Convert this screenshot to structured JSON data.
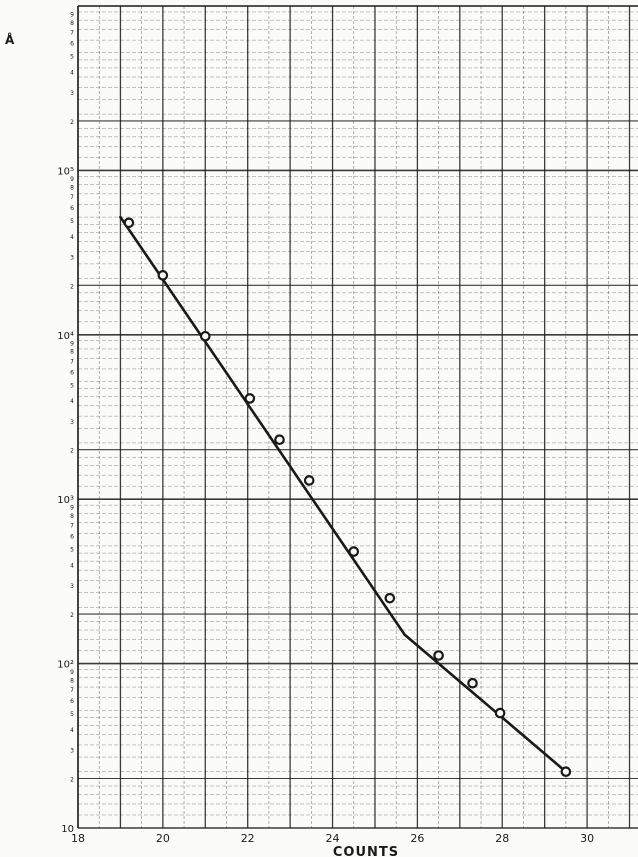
{
  "chart_data": {
    "type": "line",
    "scale": {
      "x": "linear",
      "y": "log"
    },
    "xlabel": "COUNTS",
    "ylabel": "Å",
    "xlim": [
      18,
      31.2
    ],
    "ylim": [
      10,
      1000000
    ],
    "grid": true,
    "x_ticks": [
      {
        "value": 18,
        "label": "18"
      },
      {
        "value": 20,
        "label": "20"
      },
      {
        "value": 22,
        "label": "22"
      },
      {
        "value": 24,
        "label": "24"
      },
      {
        "value": 26,
        "label": "26"
      },
      {
        "value": 28,
        "label": "28"
      },
      {
        "value": 30,
        "label": "30"
      }
    ],
    "y_decade_labels": [
      {
        "value": 10,
        "label": "10"
      },
      {
        "value": 100,
        "label": "10²"
      },
      {
        "value": 1000,
        "label": "10³"
      },
      {
        "value": 10000,
        "label": "10⁴"
      },
      {
        "value": 100000,
        "label": "10⁵"
      }
    ],
    "y_minor_labels": [
      {
        "value": 20,
        "label": "2"
      },
      {
        "value": 30,
        "label": "3"
      },
      {
        "value": 40,
        "label": "4"
      },
      {
        "value": 50,
        "label": "5"
      },
      {
        "value": 60,
        "label": "6"
      },
      {
        "value": 70,
        "label": "7"
      },
      {
        "value": 80,
        "label": "8"
      },
      {
        "value": 90,
        "label": "9"
      },
      {
        "value": 200,
        "label": "2"
      },
      {
        "value": 300,
        "label": "3"
      },
      {
        "value": 400,
        "label": "4"
      },
      {
        "value": 500,
        "label": "5"
      },
      {
        "value": 600,
        "label": "6"
      },
      {
        "value": 700,
        "label": "7"
      },
      {
        "value": 800,
        "label": "8"
      },
      {
        "value": 900,
        "label": "9"
      },
      {
        "value": 2000,
        "label": "2"
      },
      {
        "value": 3000,
        "label": "3"
      },
      {
        "value": 4000,
        "label": "4"
      },
      {
        "value": 5000,
        "label": "5"
      },
      {
        "value": 6000,
        "label": "6"
      },
      {
        "value": 7000,
        "label": "7"
      },
      {
        "value": 8000,
        "label": "8"
      },
      {
        "value": 9000,
        "label": "9"
      },
      {
        "value": 20000,
        "label": "2"
      },
      {
        "value": 30000,
        "label": "3"
      },
      {
        "value": 40000,
        "label": "4"
      },
      {
        "value": 50000,
        "label": "5"
      },
      {
        "value": 60000,
        "label": "6"
      },
      {
        "value": 70000,
        "label": "7"
      },
      {
        "value": 80000,
        "label": "8"
      },
      {
        "value": 90000,
        "label": "9"
      },
      {
        "value": 200000,
        "label": "2"
      },
      {
        "value": 300000,
        "label": "3"
      },
      {
        "value": 400000,
        "label": "4"
      },
      {
        "value": 500000,
        "label": "5"
      },
      {
        "value": 600000,
        "label": "6"
      },
      {
        "value": 700000,
        "label": "7"
      },
      {
        "value": 800000,
        "label": "8"
      },
      {
        "value": 900000,
        "label": "9"
      }
    ],
    "series": [
      {
        "marker": "open-circle",
        "x": [
          19.2,
          20.0,
          21.0,
          22.05,
          22.75,
          23.45,
          24.5,
          25.35,
          26.5,
          27.3,
          27.95,
          29.5
        ],
        "y": [
          48000,
          23000,
          9800,
          4100,
          2300,
          1300,
          480,
          250,
          112,
          76,
          50,
          22
        ]
      }
    ],
    "fit_line": {
      "x": [
        19.0,
        25.7,
        29.5
      ],
      "y": [
        52000,
        150,
        22
      ]
    },
    "colors": {
      "ink": "#1a1a1a",
      "paper": "#fbfbf7"
    }
  }
}
